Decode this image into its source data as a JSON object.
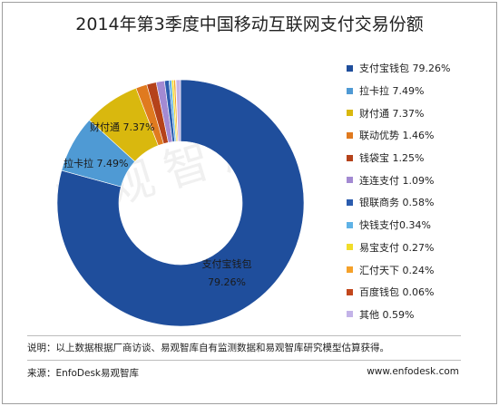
{
  "chart_data": {
    "type": "pie",
    "title": "2014年第3季度中国移动互联网支付交易份额",
    "unit": "%",
    "legend_position": "right",
    "slices": [
      {
        "label": "支付宝钱包",
        "value": 79.26,
        "legend": "支付宝钱包 79.26%",
        "color": "#1f4e9c"
      },
      {
        "label": "拉卡拉",
        "value": 7.49,
        "legend": "拉卡拉 7.49%",
        "color": "#4f9ad4"
      },
      {
        "label": "财付通",
        "value": 7.37,
        "legend": "财付通 7.37%",
        "color": "#d9b80e"
      },
      {
        "label": "联动优势",
        "value": 1.46,
        "legend": "联动优势 1.46%",
        "color": "#e07a1f"
      },
      {
        "label": "钱袋宝",
        "value": 1.25,
        "legend": "钱袋宝 1.25%",
        "color": "#b5421a"
      },
      {
        "label": "连连支付",
        "value": 1.09,
        "legend": "连连支付 1.09%",
        "color": "#a38ad2"
      },
      {
        "label": "银联商务",
        "value": 0.58,
        "legend": "银联商务 0.58%",
        "color": "#2b5cae"
      },
      {
        "label": "快钱支付",
        "value": 0.34,
        "legend": "快钱支付0.34%",
        "color": "#5fb2e6"
      },
      {
        "label": "易宝支付",
        "value": 0.27,
        "legend": "易宝支付 0.27%",
        "color": "#f1dd2a"
      },
      {
        "label": "汇付天下",
        "value": 0.24,
        "legend": "汇付天下 0.24%",
        "color": "#f5a12a"
      },
      {
        "label": "百度钱包",
        "value": 0.06,
        "legend": "百度钱包 0.06%",
        "color": "#c2471c"
      },
      {
        "label": "其他",
        "value": 0.59,
        "legend": "其他 0.59%",
        "color": "#c3b3e8"
      }
    ],
    "data_labels": [
      {
        "lines": [
          "支付宝钱包",
          "79.26%"
        ]
      },
      {
        "lines": [
          "拉卡拉 7.49%"
        ]
      },
      {
        "lines": [
          "财付通 7.37%"
        ]
      }
    ]
  },
  "watermark": "易观智库",
  "note": "说明：以上数据根据厂商访谈、易观智库自有监测数据和易观智库研究模型估算获得。",
  "source": "来源：EnfoDesk易观智库",
  "website": "www.enfodesk.com"
}
